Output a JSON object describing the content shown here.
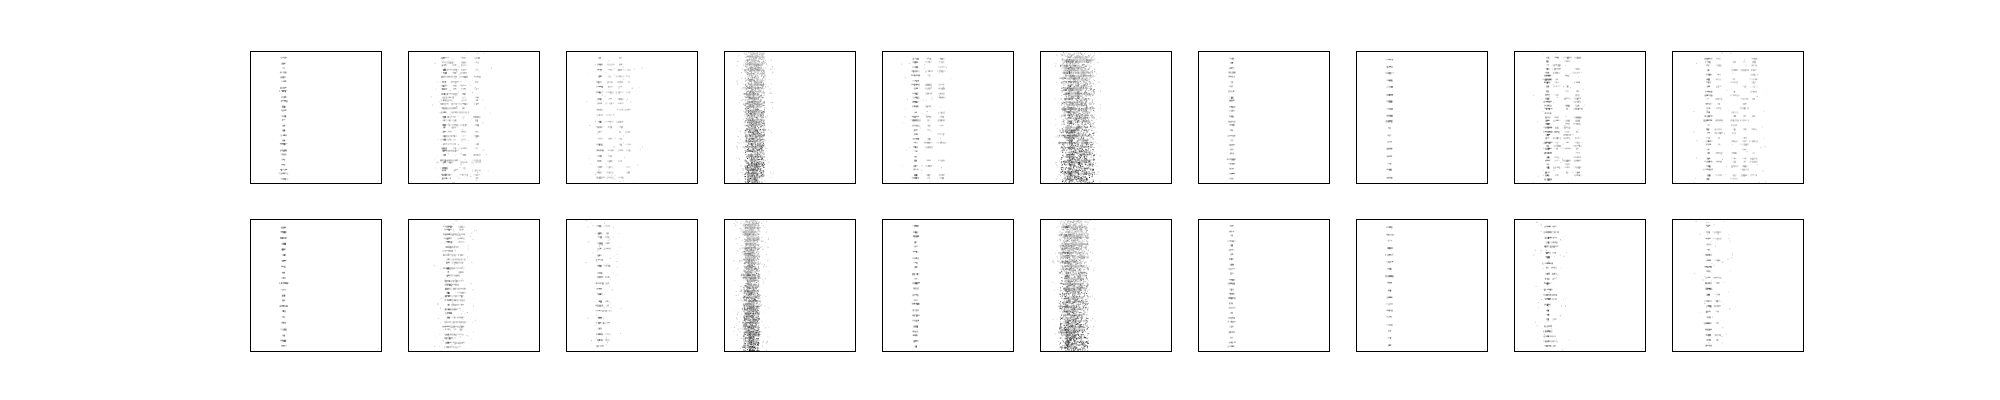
{
  "chart_data": {
    "type": "heatmap",
    "grid": {
      "rows": 2,
      "cols": 10
    },
    "colormap": "gray_r",
    "axes_visible": false,
    "grid_lines": false,
    "legend": "none",
    "value_range": [
      0,
      1
    ],
    "panels": [
      {
        "row": 0,
        "col": 0,
        "pattern": "sparse-column",
        "columns": [
          0.25
        ],
        "spread": 0.01,
        "noise": 0.0,
        "rows_marked": 26,
        "intensity": 0.7
      },
      {
        "row": 0,
        "col": 1,
        "pattern": "multi-column",
        "columns": [
          0.27,
          0.31,
          0.35,
          0.42,
          0.52
        ],
        "spread": 0.02,
        "noise": 0.02,
        "rows_marked": 32,
        "intensity": 0.7
      },
      {
        "row": 0,
        "col": 2,
        "pattern": "multi-column",
        "columns": [
          0.25,
          0.33,
          0.41,
          0.47
        ],
        "spread": 0.015,
        "noise": 0.01,
        "rows_marked": 22,
        "intensity": 0.6
      },
      {
        "row": 0,
        "col": 3,
        "pattern": "dense-band",
        "columns": [
          0.2,
          0.25
        ],
        "spread": 0.05,
        "noise": 0.05,
        "rows_marked": 40,
        "intensity": 0.8
      },
      {
        "row": 0,
        "col": 4,
        "pattern": "multi-column",
        "columns": [
          0.25,
          0.35,
          0.45
        ],
        "spread": 0.015,
        "noise": 0.01,
        "rows_marked": 28,
        "intensity": 0.7
      },
      {
        "row": 0,
        "col": 5,
        "pattern": "dense-band",
        "columns": [
          0.22,
          0.28,
          0.34
        ],
        "spread": 0.07,
        "noise": 0.07,
        "rows_marked": 45,
        "intensity": 0.8
      },
      {
        "row": 0,
        "col": 6,
        "pattern": "sparse-column",
        "columns": [
          0.25
        ],
        "spread": 0.01,
        "noise": 0.0,
        "rows_marked": 26,
        "intensity": 0.6
      },
      {
        "row": 0,
        "col": 7,
        "pattern": "sparse-column",
        "columns": [
          0.25
        ],
        "spread": 0.01,
        "noise": 0.0,
        "rows_marked": 18,
        "intensity": 0.7
      },
      {
        "row": 0,
        "col": 8,
        "pattern": "multi-column",
        "columns": [
          0.25,
          0.32,
          0.4,
          0.48
        ],
        "spread": 0.015,
        "noise": 0.01,
        "rows_marked": 34,
        "intensity": 0.75
      },
      {
        "row": 0,
        "col": 9,
        "pattern": "multi-column",
        "columns": [
          0.27,
          0.35,
          0.47,
          0.55,
          0.62
        ],
        "spread": 0.015,
        "noise": 0.01,
        "rows_marked": 30,
        "intensity": 0.65
      },
      {
        "row": 1,
        "col": 0,
        "pattern": "sparse-column",
        "columns": [
          0.25
        ],
        "spread": 0.01,
        "noise": 0.0,
        "rows_marked": 22,
        "intensity": 0.75
      },
      {
        "row": 1,
        "col": 1,
        "pattern": "multi-column",
        "columns": [
          0.3,
          0.35,
          0.4
        ],
        "spread": 0.025,
        "noise": 0.02,
        "rows_marked": 30,
        "intensity": 0.7
      },
      {
        "row": 1,
        "col": 2,
        "pattern": "multi-column",
        "columns": [
          0.25,
          0.31
        ],
        "spread": 0.015,
        "noise": 0.01,
        "rows_marked": 22,
        "intensity": 0.7
      },
      {
        "row": 1,
        "col": 3,
        "pattern": "dense-band",
        "columns": [
          0.18,
          0.22
        ],
        "spread": 0.04,
        "noise": 0.05,
        "rows_marked": 40,
        "intensity": 0.8
      },
      {
        "row": 1,
        "col": 4,
        "pattern": "sparse-column",
        "columns": [
          0.25
        ],
        "spread": 0.012,
        "noise": 0.0,
        "rows_marked": 24,
        "intensity": 0.75
      },
      {
        "row": 1,
        "col": 5,
        "pattern": "dense-band",
        "columns": [
          0.2,
          0.25,
          0.3
        ],
        "spread": 0.06,
        "noise": 0.06,
        "rows_marked": 42,
        "intensity": 0.8
      },
      {
        "row": 1,
        "col": 6,
        "pattern": "sparse-column",
        "columns": [
          0.25
        ],
        "spread": 0.01,
        "noise": 0.0,
        "rows_marked": 26,
        "intensity": 0.6
      },
      {
        "row": 1,
        "col": 7,
        "pattern": "sparse-column",
        "columns": [
          0.25
        ],
        "spread": 0.01,
        "noise": 0.0,
        "rows_marked": 18,
        "intensity": 0.65
      },
      {
        "row": 1,
        "col": 8,
        "pattern": "multi-column",
        "columns": [
          0.25,
          0.3
        ],
        "spread": 0.02,
        "noise": 0.01,
        "rows_marked": 24,
        "intensity": 0.75
      },
      {
        "row": 1,
        "col": 9,
        "pattern": "multi-column",
        "columns": [
          0.27,
          0.34
        ],
        "spread": 0.015,
        "noise": 0.01,
        "rows_marked": 22,
        "intensity": 0.7
      }
    ]
  }
}
